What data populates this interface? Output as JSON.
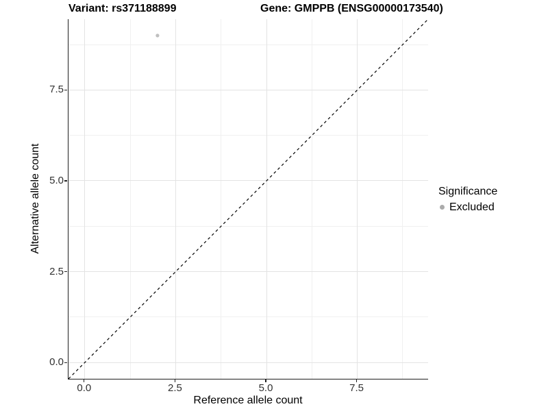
{
  "chart_data": {
    "type": "scatter",
    "title_left": "Variant: rs371188899",
    "title_right": "Gene: GMPPB (ENSG00000173540)",
    "xlabel": "Reference allele count",
    "ylabel": "Alternative allele count",
    "xlim": [
      -0.45,
      9.45
    ],
    "ylim": [
      -0.45,
      9.45
    ],
    "major_ticks": {
      "values": [
        0,
        2.5,
        5,
        7.5
      ],
      "labels": [
        "0.0",
        "2.5",
        "5.0",
        "7.5"
      ]
    },
    "minor_gridlines": [
      1.25,
      3.75,
      6.25,
      8.75
    ],
    "grid": "major+minor",
    "reference_line": {
      "slope": 1,
      "intercept": 0,
      "style": "dashed",
      "color": "#000000"
    },
    "series": [
      {
        "name": "Excluded",
        "color": "#bfbfbf",
        "points": [
          {
            "x": 2,
            "y": 9
          }
        ]
      }
    ],
    "legend_position": "right"
  },
  "legend": {
    "title": "Significance",
    "items": [
      {
        "label": "Excluded",
        "color": "#ababab",
        "marker": "circle"
      }
    ]
  },
  "colors": {
    "background": "#ffffff",
    "axis_line": "#1f1f1f",
    "major_grid": "#e3e3e3",
    "minor_grid": "#f0f0f0",
    "tick_text": "#303030"
  }
}
